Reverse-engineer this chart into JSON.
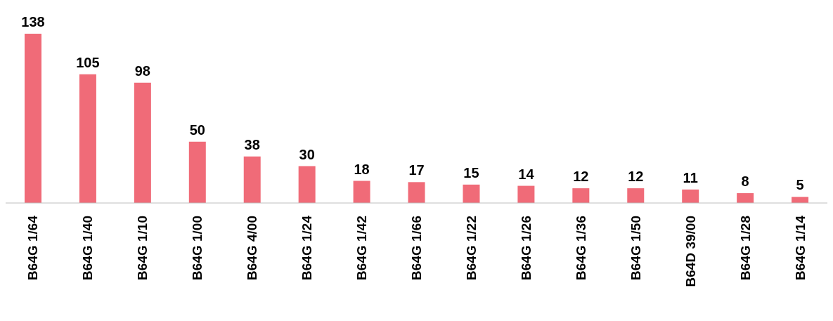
{
  "chart_data": {
    "type": "bar",
    "categories": [
      "B64G 1/64",
      "B64G 1/40",
      "B64G 1/10",
      "B64G 1/00",
      "B64G 4/00",
      "B64G 1/24",
      "B64G 1/42",
      "B64G 1/66",
      "B64G 1/22",
      "B64G 1/26",
      "B64G 1/36",
      "B64G 1/50",
      "B64D 39/00",
      "B64G 1/28",
      "B64G 1/14"
    ],
    "values": [
      138,
      105,
      98,
      50,
      38,
      30,
      18,
      17,
      15,
      14,
      12,
      12,
      11,
      8,
      5
    ],
    "color": "#f06b78",
    "data_labels": true,
    "grid": false,
    "legend": false
  }
}
